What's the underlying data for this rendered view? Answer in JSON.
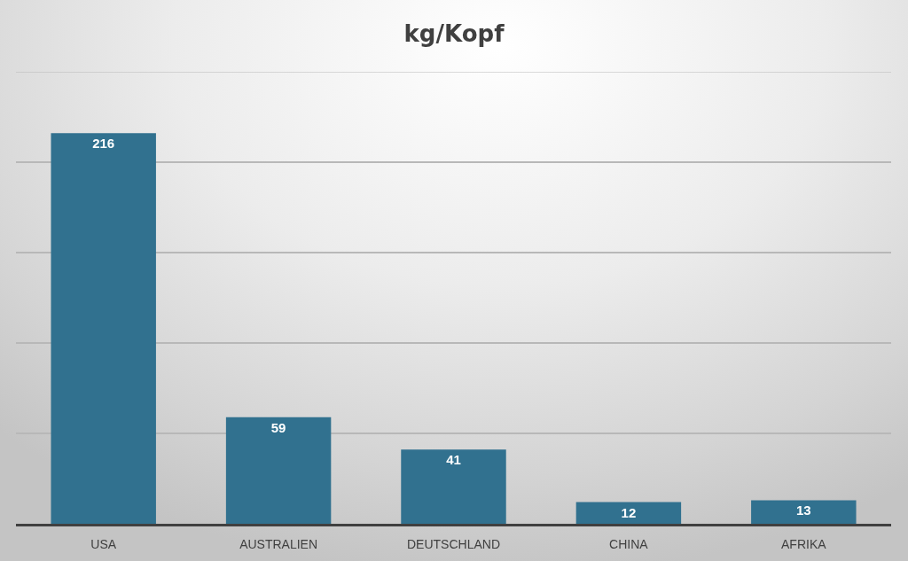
{
  "chart_data": {
    "type": "bar",
    "title": "kg/Kopf",
    "categories": [
      "USA",
      "AUSTRALIEN",
      "DEUTSCHLAND",
      "CHINA",
      "AFRIKA"
    ],
    "values": [
      216,
      59,
      41,
      12,
      13
    ],
    "color": "#31718f",
    "ylim": [
      0,
      250
    ],
    "yticks": [
      {
        "value": 0,
        "label": null
      },
      {
        "value": 50,
        "label": null
      },
      {
        "value": 100,
        "label": null
      },
      {
        "value": 150,
        "label": null
      },
      {
        "value": 200,
        "label": null
      },
      {
        "value": 250,
        "label": null
      }
    ],
    "grid": "y",
    "tick_labels": "x",
    "data_labels": true
  }
}
